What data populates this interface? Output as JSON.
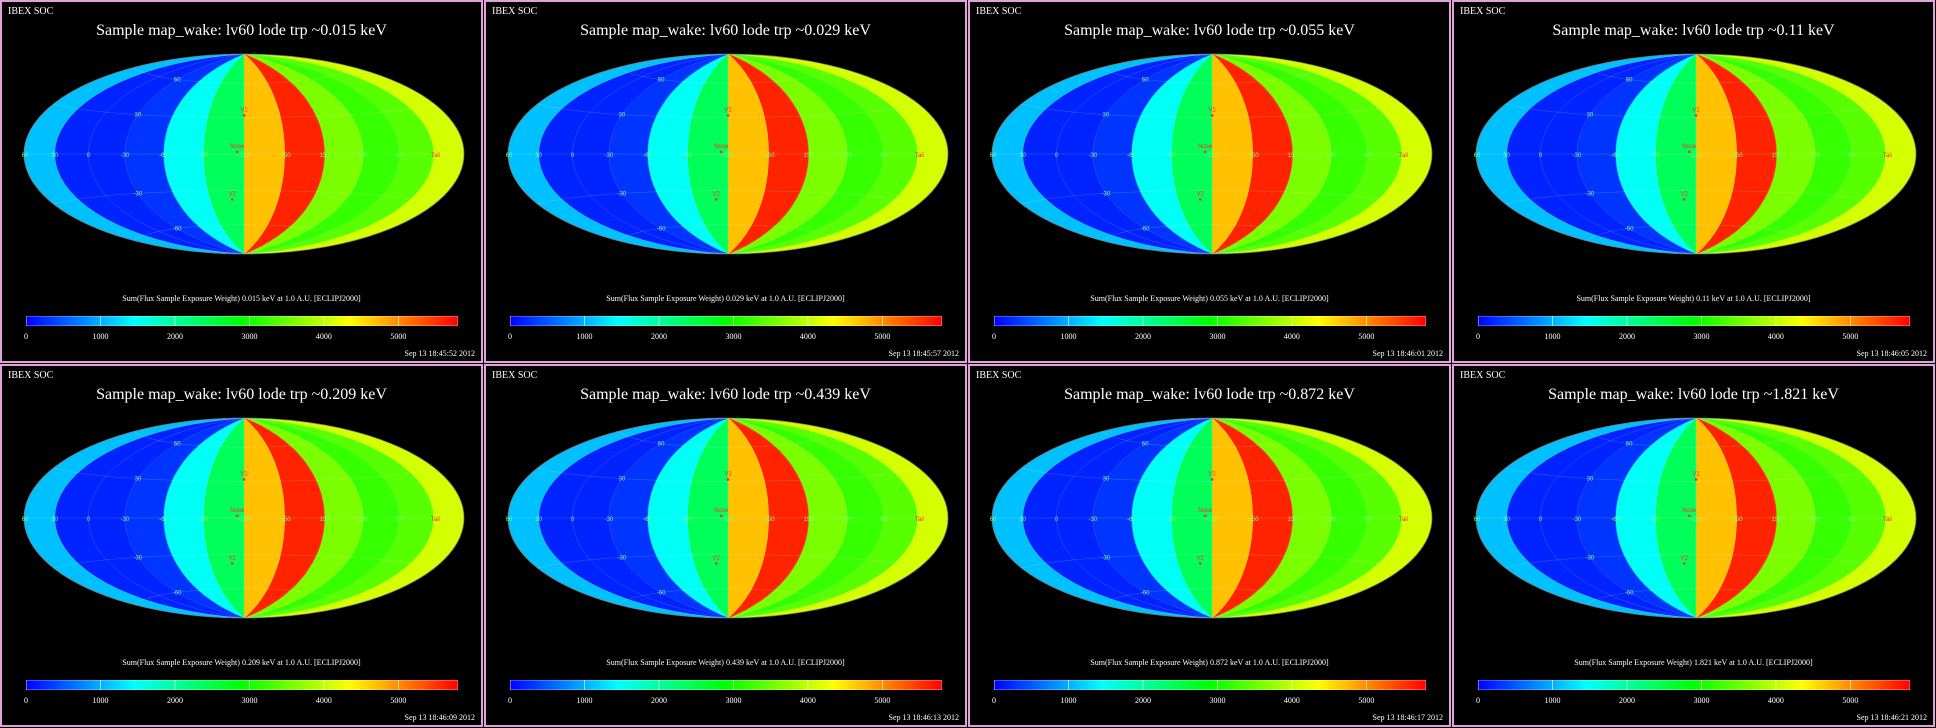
{
  "panels": [
    {
      "source": "IBEX SOC",
      "title": "Sample map_wake: lv60 lode trp ~0.015 keV",
      "colorbar_label": "Sum(Flux Sample Exposure Weight)  0.015 keV at 1.0 A.U. [ECLIPJ2000]",
      "timestamp": "Sep 13 18:45:52 2012"
    },
    {
      "source": "IBEX SOC",
      "title": "Sample map_wake: lv60 lode trp ~0.029 keV",
      "colorbar_label": "Sum(Flux Sample Exposure Weight)  0.029 keV at 1.0 A.U. [ECLIPJ2000]",
      "timestamp": "Sep 13 18:45:57 2012"
    },
    {
      "source": "IBEX SOC",
      "title": "Sample map_wake: lv60 lode trp ~0.055 keV",
      "colorbar_label": "Sum(Flux Sample Exposure Weight)  0.055 keV at 1.0 A.U. [ECLIPJ2000]",
      "timestamp": "Sep 13 18:46:01 2012"
    },
    {
      "source": "IBEX SOC",
      "title": "Sample map_wake: lv60 lode trp ~0.11 keV",
      "colorbar_label": "Sum(Flux Sample Exposure Weight)  0.11 keV at 1.0 A.U. [ECLIPJ2000]",
      "timestamp": "Sep 13 18:46:05 2012"
    },
    {
      "source": "IBEX SOC",
      "title": "Sample map_wake: lv60 lode trp ~0.209 keV",
      "colorbar_label": "Sum(Flux Sample Exposure Weight)  0.209 keV at 1.0 A.U. [ECLIPJ2000]",
      "timestamp": "Sep 13 18:46:09 2012"
    },
    {
      "source": "IBEX SOC",
      "title": "Sample map_wake: lv60 lode trp ~0.439 keV",
      "colorbar_label": "Sum(Flux Sample Exposure Weight)  0.439 keV at 1.0 A.U. [ECLIPJ2000]",
      "timestamp": "Sep 13 18:46:13 2012"
    },
    {
      "source": "IBEX SOC",
      "title": "Sample map_wake: lv60 lode trp ~0.872 keV",
      "colorbar_label": "Sum(Flux Sample Exposure Weight)  0.872 keV at 1.0 A.U. [ECLIPJ2000]",
      "timestamp": "Sep 13 18:46:17 2012"
    },
    {
      "source": "IBEX SOC",
      "title": "Sample map_wake: lv60 lode trp ~1.821 keV",
      "colorbar_label": "Sum(Flux Sample Exposure Weight)  1.821 keV at 1.0 A.U. [ECLIPJ2000]",
      "timestamp": "Sep 13 18:46:21 2012"
    }
  ],
  "chart_data": {
    "type": "heatmap",
    "projection": "Hammer-Aitoff all-sky (ecliptic)",
    "colorbar": {
      "min": 0,
      "max": 5800,
      "ticks": [
        0,
        1000,
        2000,
        3000,
        4000,
        5000
      ]
    },
    "colormap": [
      "#0000ff",
      "#00ffff",
      "#00ff00",
      "#ffff00",
      "#ff0000"
    ],
    "grid": true,
    "longitude_labels": [
      "60",
      "30",
      "0",
      "-30",
      "-60",
      "-90",
      "-120",
      "-150",
      "150",
      "120",
      "90",
      "Tail"
    ],
    "latitude_labels": [
      "60",
      "30",
      "-30",
      "-60"
    ],
    "markers": [
      "V1",
      "Nose",
      "V2"
    ],
    "longitude_bands_deg": [
      -180,
      -150,
      -120,
      -90,
      -60,
      -30,
      0,
      30,
      60,
      90,
      120,
      150,
      180
    ],
    "band_values": [
      4100,
      3400,
      3200,
      3600,
      5600,
      4700,
      2400,
      1500,
      300,
      200,
      200,
      1100
    ]
  }
}
